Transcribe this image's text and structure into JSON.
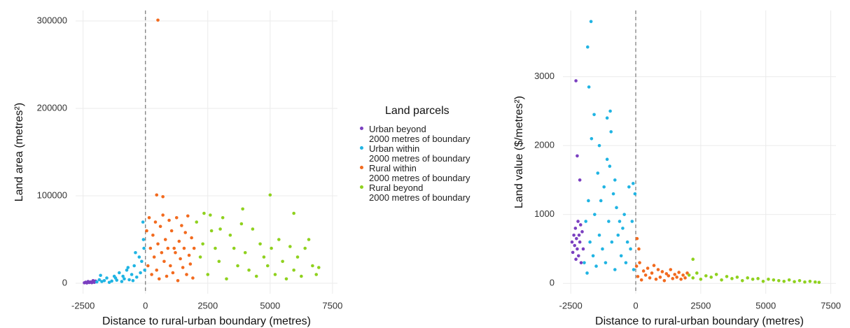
{
  "chart_data": [
    {
      "type": "scatter",
      "x_label": "Distance to rural-urban boundary (metres)",
      "y_label": "Land area (metres²)",
      "legend_title": "Land parcels",
      "xlim": [
        -2800,
        7700
      ],
      "xticks": [
        -2500,
        0,
        2500,
        5000,
        7500
      ],
      "ylim": [
        -12000,
        312000
      ],
      "yticks": [
        0,
        100000,
        200000,
        300000
      ],
      "vline": 0,
      "grid": true,
      "series": [
        {
          "name": "Urban beyond\n2000 metres of boundary",
          "color": "#7a3fc0",
          "x": [
            -2450,
            -2400,
            -2350,
            -2300,
            -2250,
            -2200,
            -2150,
            -2100,
            -2050,
            -2000
          ],
          "values": [
            500,
            1200,
            300,
            2000,
            800,
            1500,
            600,
            3000,
            1000,
            2500
          ]
        },
        {
          "name": "Urban within\n2000 metres of boundary",
          "color": "#20b4e3",
          "x": [
            -1950,
            -1850,
            -1750,
            -1650,
            -1550,
            -1450,
            -1350,
            -1250,
            -1150,
            -1050,
            -950,
            -850,
            -750,
            -650,
            -550,
            -450,
            -350,
            -250,
            -150,
            -100,
            -60,
            -30,
            -1800,
            -1200,
            -700,
            -400,
            -200,
            -80,
            -500,
            -900
          ],
          "values": [
            1500,
            4000,
            2000,
            3000,
            6000,
            1000,
            2500,
            8000,
            3500,
            12000,
            2000,
            5000,
            15000,
            4000,
            10000,
            20000,
            7000,
            30000,
            25000,
            70000,
            40000,
            15000,
            9000,
            6000,
            18000,
            35000,
            12000,
            50000,
            3000,
            8000
          ]
        },
        {
          "name": "Rural within\n2000 metres of boundary",
          "color": "#f26a1e",
          "x": [
            50,
            100,
            150,
            200,
            250,
            300,
            350,
            400,
            450,
            500,
            550,
            600,
            650,
            700,
            750,
            800,
            850,
            900,
            950,
            1000,
            1050,
            1100,
            1150,
            1200,
            1250,
            1300,
            1350,
            1400,
            1450,
            1500,
            1550,
            1600,
            1650,
            1700,
            1750,
            1800,
            1850,
            1900,
            1950,
            500,
            450,
            700
          ],
          "values": [
            60000,
            20000,
            75000,
            40000,
            10000,
            55000,
            30000,
            70000,
            15000,
            45000,
            5000,
            65000,
            35000,
            78000,
            25000,
            50000,
            8000,
            40000,
            72000,
            20000,
            60000,
            12000,
            40000,
            35000,
            75000,
            3000,
            48000,
            28000,
            66000,
            18000,
            40000,
            58000,
            10000,
            77000,
            32000,
            22000,
            52000,
            6000,
            40000,
            301000,
            101000,
            99000
          ]
        },
        {
          "name": "Rural beyond\n2000 metres of boundary",
          "color": "#8fd11e",
          "x": [
            2050,
            2200,
            2350,
            2500,
            2650,
            2800,
            2950,
            3100,
            3250,
            3400,
            3550,
            3700,
            3850,
            4000,
            4150,
            4300,
            4450,
            4600,
            4750,
            4900,
            5050,
            5200,
            5350,
            5500,
            5650,
            5800,
            5950,
            6100,
            6250,
            6400,
            6550,
            6700,
            6850,
            6950,
            3900,
            5000,
            5950,
            2300,
            2600,
            3000
          ],
          "values": [
            70000,
            30000,
            80000,
            10000,
            60000,
            40000,
            25000,
            75000,
            5000,
            55000,
            40000,
            20000,
            68000,
            35000,
            15000,
            62000,
            8000,
            45000,
            30000,
            20000,
            40000,
            10000,
            50000,
            25000,
            5000,
            42000,
            15000,
            30000,
            8000,
            40000,
            50000,
            20000,
            10000,
            18000,
            85000,
            101000,
            80000,
            45000,
            78000,
            62000
          ]
        }
      ]
    },
    {
      "type": "scatter",
      "x_label": "Distance to rural-urban boundary (metres)",
      "y_label": "Land value ($/metres²)",
      "xlim": [
        -2800,
        7700
      ],
      "xticks": [
        -2500,
        0,
        2500,
        5000,
        7500
      ],
      "ylim": [
        -150,
        3960
      ],
      "yticks": [
        0,
        1000,
        2000,
        3000
      ],
      "vline": 0,
      "grid": true,
      "series": [
        {
          "color": "#7a3fc0",
          "x": [
            -2450,
            -2420,
            -2380,
            -2350,
            -2320,
            -2300,
            -2280,
            -2250,
            -2220,
            -2200,
            -2180,
            -2150,
            -2120,
            -2100,
            -2060,
            -2020,
            -2300,
            -2250,
            -2150
          ],
          "values": [
            600,
            450,
            700,
            550,
            800,
            350,
            650,
            500,
            900,
            400,
            700,
            600,
            850,
            300,
            750,
            500,
            2940,
            1850,
            1500
          ]
        },
        {
          "color": "#20b4e3",
          "x": [
            -1980,
            -1920,
            -1870,
            -1820,
            -1760,
            -1700,
            -1640,
            -1580,
            -1520,
            -1460,
            -1400,
            -1340,
            -1280,
            -1220,
            -1160,
            -1100,
            -1040,
            -980,
            -920,
            -860,
            -800,
            -740,
            -680,
            -620,
            -560,
            -500,
            -440,
            -380,
            -320,
            -260,
            -200,
            -140,
            -80,
            -30,
            -1720,
            -1850,
            -1800,
            -1100,
            -950,
            -1400,
            -1600,
            -1000,
            -800,
            -100
          ],
          "values": [
            300,
            900,
            150,
            1200,
            600,
            2100,
            400,
            1000,
            250,
            1600,
            700,
            1200,
            500,
            1400,
            300,
            1800,
            900,
            2500,
            600,
            1300,
            200,
            1100,
            700,
            900,
            400,
            800,
            1000,
            300,
            600,
            1400,
            500,
            900,
            200,
            1300,
            3800,
            3430,
            2850,
            2400,
            2200,
            2000,
            2450,
            1700,
            1500,
            1450
          ]
        },
        {
          "color": "#f26a1e",
          "x": [
            30,
            80,
            150,
            220,
            300,
            380,
            460,
            540,
            620,
            700,
            780,
            860,
            940,
            1020,
            1100,
            1180,
            1260,
            1340,
            1420,
            1500,
            1580,
            1660,
            1740,
            1820,
            1900,
            1980,
            50,
            120
          ],
          "values": [
            250,
            100,
            300,
            50,
            180,
            120,
            220,
            80,
            150,
            260,
            60,
            200,
            90,
            170,
            40,
            140,
            110,
            200,
            70,
            130,
            90,
            160,
            60,
            120,
            80,
            150,
            650,
            500
          ]
        },
        {
          "color": "#8fd11e",
          "x": [
            2050,
            2200,
            2350,
            2500,
            2700,
            2900,
            3100,
            3300,
            3500,
            3700,
            3900,
            4100,
            4300,
            4500,
            4700,
            4900,
            5100,
            5300,
            5500,
            5700,
            5900,
            6100,
            6300,
            6500,
            6700,
            6900,
            7050,
            2200
          ],
          "values": [
            120,
            80,
            150,
            60,
            110,
            90,
            130,
            50,
            100,
            70,
            90,
            40,
            80,
            60,
            70,
            30,
            60,
            50,
            40,
            30,
            50,
            25,
            40,
            20,
            30,
            20,
            15,
            350
          ]
        }
      ]
    }
  ]
}
